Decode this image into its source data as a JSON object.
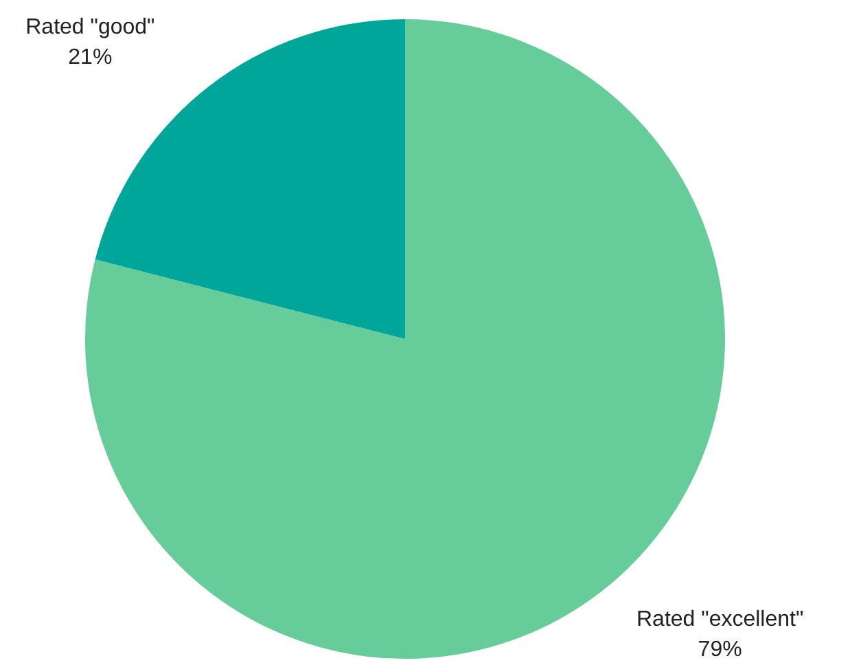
{
  "chart_data": {
    "type": "pie",
    "categories": [
      "Rated \"excellent\"",
      "Rated \"good\""
    ],
    "values": [
      79,
      21
    ],
    "value_labels": [
      "79%",
      "21%"
    ],
    "colors": [
      "#66cc99",
      "#00a699"
    ],
    "legend": false
  }
}
